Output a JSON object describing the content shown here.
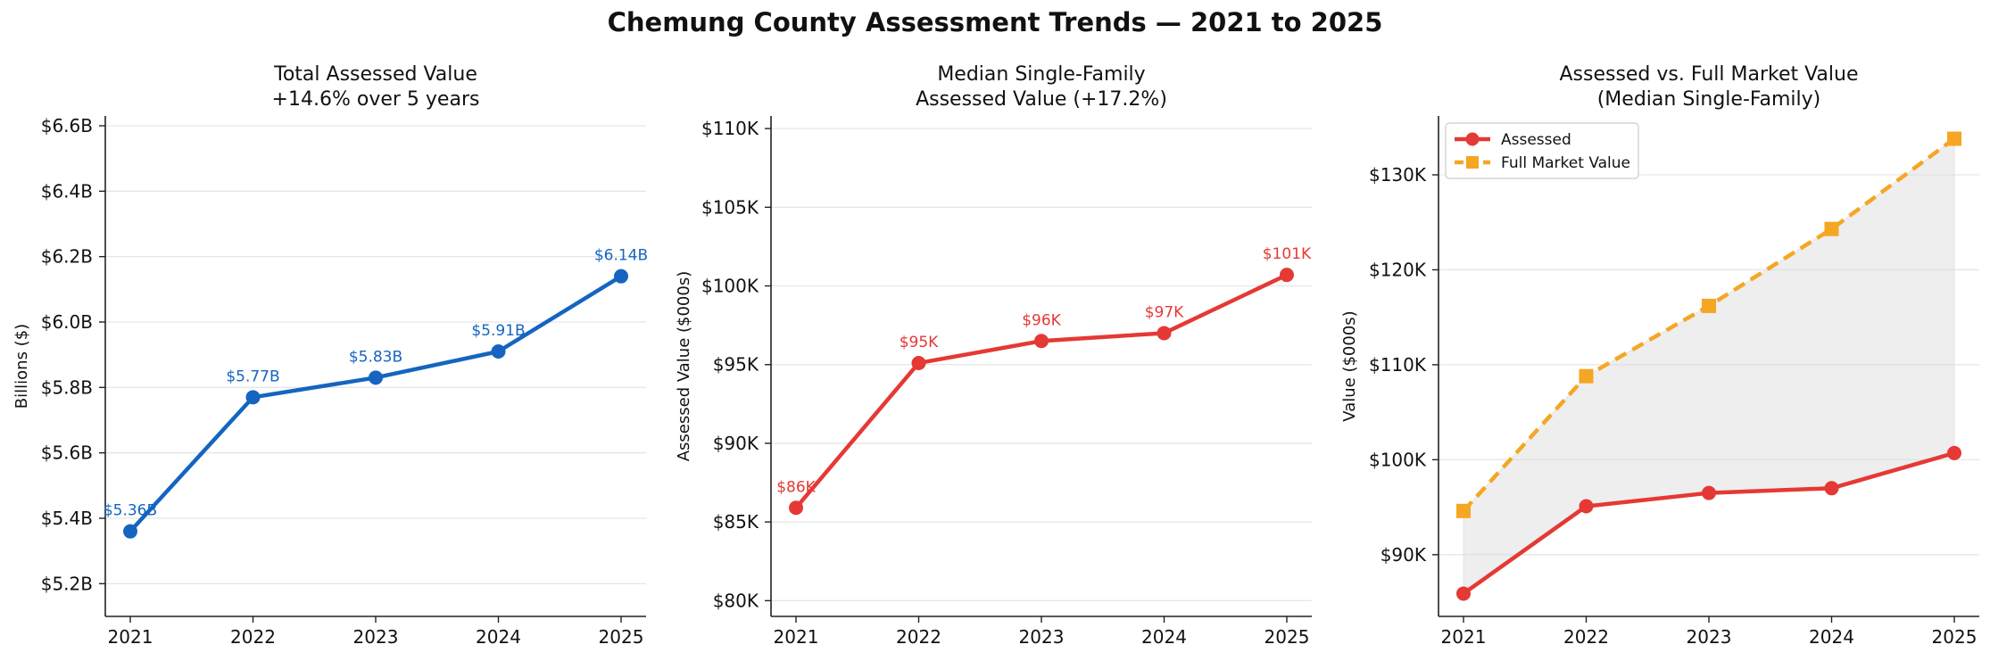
{
  "suptitle": "Chemung County Assessment Trends — 2021 to 2025",
  "colors": {
    "blue": "#1565C0",
    "red": "#E53935",
    "orange": "#F5A623",
    "grid": "#e6e6e6",
    "fill": "#d9d9d9"
  },
  "chart_data": [
    {
      "type": "line",
      "title": [
        "Total Assessed Value",
        "+14.6% over 5 years"
      ],
      "ylabel": "Billions ($)",
      "x": [
        "2021",
        "2022",
        "2023",
        "2024",
        "2025"
      ],
      "ylim": [
        5.1,
        6.63
      ],
      "yticks": [
        5.2,
        5.4,
        5.6,
        5.8,
        6.0,
        6.2,
        6.4,
        6.6
      ],
      "ytick_labels": [
        "$5.2B",
        "$5.4B",
        "$5.6B",
        "$5.8B",
        "$6.0B",
        "$6.2B",
        "$6.4B",
        "$6.6B"
      ],
      "grid": true,
      "series": [
        {
          "values": [
            5.36,
            5.77,
            5.83,
            5.91,
            6.14
          ],
          "color": "#1565C0",
          "marker": "circle",
          "dash": false,
          "labels": [
            "$5.36B",
            "$5.77B",
            "$5.83B",
            "$5.91B",
            "$6.14B"
          ]
        }
      ]
    },
    {
      "type": "line",
      "title": [
        "Median Single-Family",
        "Assessed Value  (+17.2%)"
      ],
      "ylabel": "Assessed Value ($000s)",
      "x": [
        "2021",
        "2022",
        "2023",
        "2024",
        "2025"
      ],
      "ylim": [
        79,
        110.8
      ],
      "yticks": [
        80,
        85,
        90,
        95,
        100,
        105,
        110
      ],
      "ytick_labels": [
        "$80K",
        "$85K",
        "$90K",
        "$95K",
        "$100K",
        "$105K",
        "$110K"
      ],
      "grid": true,
      "series": [
        {
          "values": [
            85.9,
            95.1,
            96.5,
            97.0,
            100.7
          ],
          "color": "#E53935",
          "marker": "circle",
          "dash": false,
          "labels": [
            "$86K",
            "$95K",
            "$96K",
            "$97K",
            "$101K"
          ]
        }
      ]
    },
    {
      "type": "line",
      "title": [
        "Assessed vs. Full Market Value",
        "(Median Single-Family)"
      ],
      "ylabel": "Value ($000s)",
      "x": [
        "2021",
        "2022",
        "2023",
        "2024",
        "2025"
      ],
      "ylim": [
        83.5,
        136.2
      ],
      "yticks": [
        90,
        100,
        110,
        120,
        130
      ],
      "ytick_labels": [
        "$90K",
        "$100K",
        "$110K",
        "$120K",
        "$130K"
      ],
      "grid": true,
      "legend": "top-left",
      "fill_between": true,
      "series": [
        {
          "name": "Assessed",
          "values": [
            85.9,
            95.1,
            96.5,
            97.0,
            100.7
          ],
          "color": "#E53935",
          "marker": "circle",
          "dash": false
        },
        {
          "name": "Full Market Value",
          "values": [
            94.6,
            108.8,
            116.2,
            124.3,
            133.8
          ],
          "color": "#F5A623",
          "marker": "square",
          "dash": true
        }
      ]
    }
  ]
}
